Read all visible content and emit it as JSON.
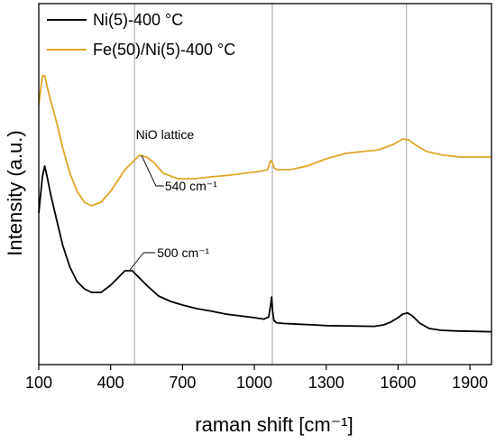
{
  "chart_data": {
    "type": "line",
    "xlabel": "raman shift [cm⁻¹]",
    "ylabel": "Intensity (a.u.)",
    "xlim": [
      100,
      1990
    ],
    "ylim": [
      0,
      100
    ],
    "x_ticks": [
      100,
      400,
      700,
      1000,
      1300,
      1600,
      1900
    ],
    "x_tick_labels": [
      "100",
      "400",
      "700",
      "1000",
      "1300",
      "1600",
      "1900"
    ],
    "grid": false,
    "y_tick_labels_shown": false,
    "legend_position": "top-left",
    "reference_lines_x": [
      500,
      1075,
      1635
    ],
    "colors": {
      "ni": "#000000",
      "feni": "#e0a526",
      "reflines": "#b0b0b0",
      "axes": "#000000"
    },
    "series": [
      {
        "name": "Ni(5)-400 °C",
        "color": "#000000",
        "x": [
          100,
          115,
          125,
          135,
          150,
          175,
          200,
          230,
          260,
          290,
          320,
          360,
          400,
          430,
          460,
          490,
          520,
          550,
          600,
          650,
          700,
          760,
          820,
          880,
          940,
          1000,
          1040,
          1060,
          1068,
          1072,
          1076,
          1082,
          1092,
          1120,
          1180,
          1250,
          1300,
          1400,
          1500,
          1540,
          1570,
          1600,
          1620,
          1640,
          1660,
          1690,
          1730,
          1780,
          1850,
          1920,
          1990
        ],
        "y": [
          42,
          52,
          55,
          52,
          47,
          40,
          33,
          27,
          23,
          21,
          20,
          20,
          22,
          24,
          26,
          26,
          24,
          22,
          19,
          17.5,
          16.5,
          15.5,
          14.8,
          14,
          13.5,
          13,
          12.6,
          13.2,
          16.5,
          18.7,
          15,
          12.2,
          11.6,
          11.4,
          11.2,
          11,
          10.8,
          10.7,
          10.6,
          11,
          11.8,
          13,
          14,
          14.3,
          13.5,
          11.5,
          10,
          9.5,
          9.3,
          9.2,
          9.1
        ]
      },
      {
        "name": "Fe(50)/Ni(5)-400 °C",
        "color": "#e0a526",
        "x": [
          100,
          115,
          125,
          135,
          150,
          175,
          200,
          230,
          260,
          290,
          320,
          360,
          400,
          430,
          460,
          490,
          520,
          550,
          580,
          620,
          680,
          750,
          820,
          900,
          960,
          1020,
          1055,
          1068,
          1075,
          1082,
          1095,
          1150,
          1220,
          1300,
          1380,
          1450,
          1520,
          1580,
          1620,
          1645,
          1670,
          1720,
          1790,
          1860,
          1930,
          1990
        ],
        "y": [
          72,
          80,
          80,
          77,
          73,
          67,
          60,
          53,
          48,
          45,
          44,
          45,
          48,
          51,
          54,
          56,
          58,
          57.5,
          56,
          53,
          51.5,
          51.5,
          52,
          52.5,
          53,
          53.5,
          54,
          56.5,
          56,
          54.5,
          54,
          54,
          55,
          57,
          58.5,
          59,
          59.5,
          61,
          62.5,
          62.2,
          61,
          59,
          58,
          57.5,
          57.5,
          57.5
        ]
      }
    ],
    "annotations": {
      "nio_label": "NiO lattice",
      "label_540": "540 cm⁻¹",
      "label_500": "500 cm⁻¹",
      "label_540_x": 540,
      "label_500_x": 500
    }
  }
}
